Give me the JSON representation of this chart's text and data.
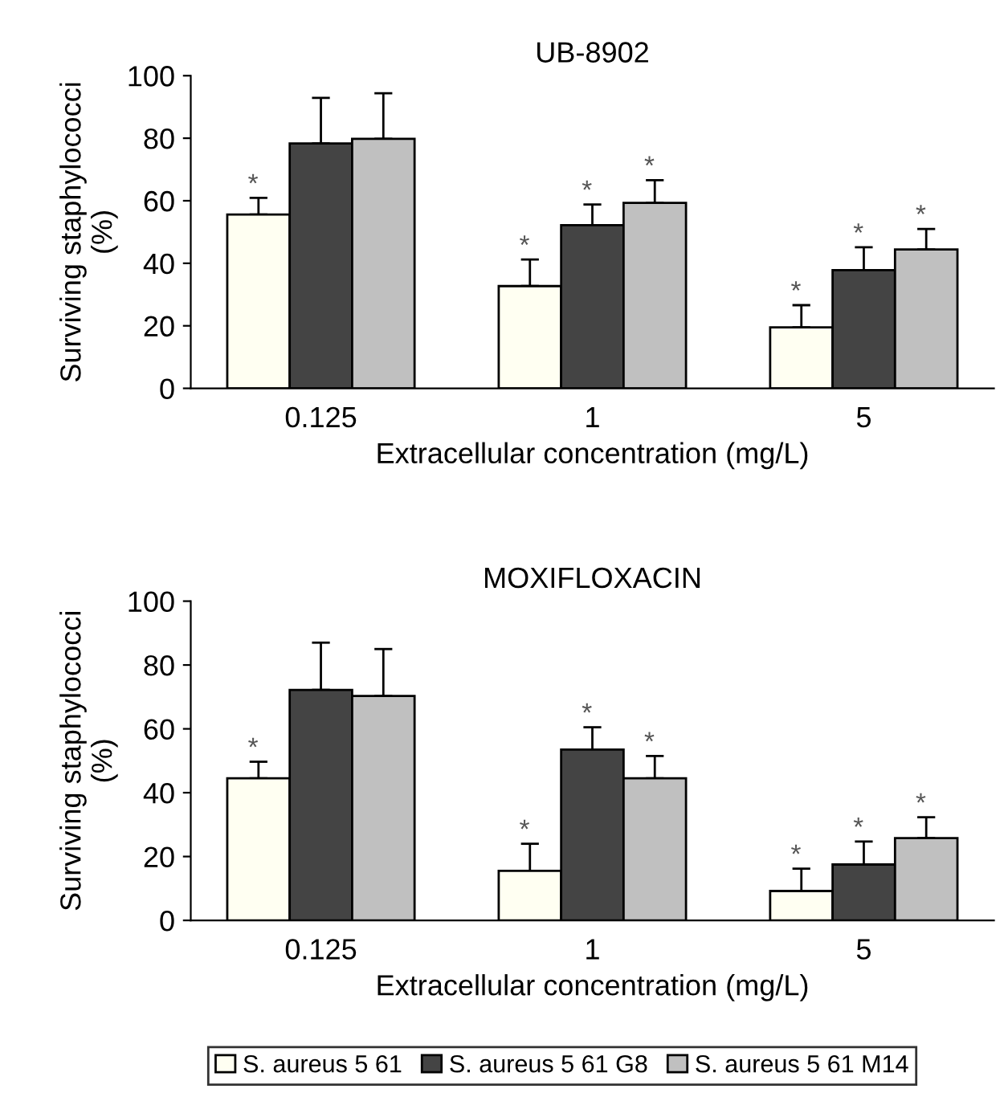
{
  "chart_data": [
    {
      "type": "bar",
      "title": "UB-8902",
      "xlabel": "Extracellular concentration (mg/L)",
      "ylabel": "Surviving staphylococci\n(%)",
      "categories": [
        "0.125",
        "1",
        "5"
      ],
      "ylim": [
        0,
        100
      ],
      "yticks": [
        0,
        20,
        40,
        60,
        80,
        100
      ],
      "grid": false,
      "legend": false,
      "series": [
        {
          "color": "#fffff2",
          "values": [
            55.6,
            32.7,
            19.5
          ],
          "errors": [
            [
              55.6,
              60.9
            ],
            [
              32.7,
              41.2
            ],
            [
              19.5,
              26.6
            ]
          ],
          "value_labels": [
            "*",
            "*",
            "*"
          ]
        },
        {
          "color": "#444444",
          "values": [
            78.3,
            52.2,
            37.8
          ],
          "errors": [
            [
              78.3,
              92.9
            ],
            [
              52.2,
              58.8
            ],
            [
              37.8,
              45.1
            ]
          ],
          "value_labels": [
            null,
            "*",
            "*"
          ]
        },
        {
          "color": "#c0c0c0",
          "values": [
            79.8,
            59.3,
            44.4
          ],
          "errors": [
            [
              79.8,
              94.4
            ],
            [
              59.3,
              66.6
            ],
            [
              44.4,
              51.0
            ]
          ],
          "value_labels": [
            null,
            "*",
            "*"
          ]
        }
      ]
    },
    {
      "type": "bar",
      "title": "MOXIFLOXACIN",
      "xlabel": "Extracellular concentration (mg/L)",
      "ylabel": "Surviving staphylococci\n(%)",
      "categories": [
        "0.125",
        "1",
        "5"
      ],
      "ylim": [
        0,
        100
      ],
      "yticks": [
        0,
        20,
        40,
        60,
        80,
        100
      ],
      "grid": false,
      "legend": "bottom",
      "series": [
        {
          "name": "S. aureus 5 61",
          "color": "#fffff2",
          "values": [
            44.5,
            15.5,
            9.2
          ],
          "errors": [
            [
              44.5,
              49.7
            ],
            [
              15.5,
              24.0
            ],
            [
              9.2,
              16.2
            ]
          ],
          "value_labels": [
            "*",
            "*",
            "*"
          ]
        },
        {
          "name": "S. aureus 5 61 G8",
          "color": "#444444",
          "values": [
            72.2,
            53.5,
            17.5
          ],
          "errors": [
            [
              72.2,
              87.0
            ],
            [
              53.5,
              60.5
            ],
            [
              17.5,
              24.7
            ]
          ],
          "value_labels": [
            null,
            "*",
            "*"
          ]
        },
        {
          "name": "S. aureus 5 61 M14",
          "color": "#c0c0c0",
          "values": [
            70.3,
            44.5,
            25.8
          ],
          "errors": [
            [
              70.3,
              85.0
            ],
            [
              44.5,
              51.5
            ],
            [
              25.8,
              32.3
            ]
          ],
          "value_labels": [
            null,
            "*",
            "*"
          ]
        }
      ]
    }
  ]
}
